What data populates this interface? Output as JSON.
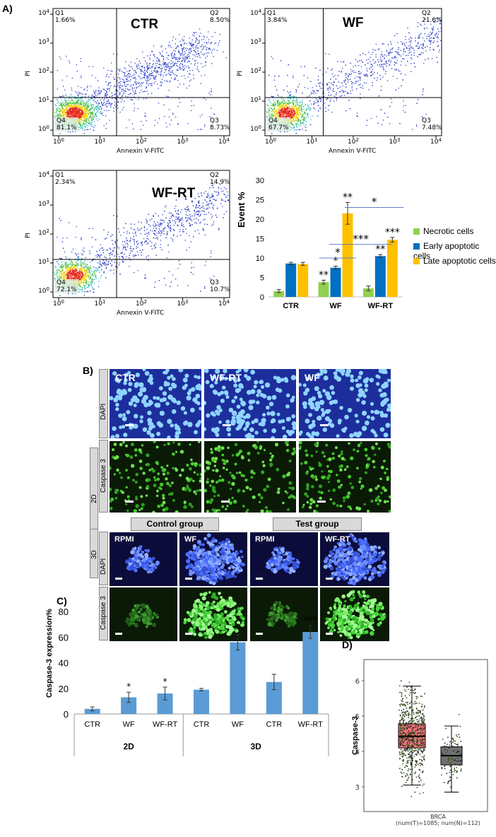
{
  "panels": {
    "a_label": "A)",
    "b_label": "B)",
    "c_label": "C)",
    "d_label": "D)"
  },
  "flow": {
    "y_axis_label": "PI",
    "x_axis_label": "Annexin V-FITC",
    "plots": [
      {
        "title": "CTR",
        "q1_label": "Q1",
        "q1_value": "1.66%",
        "q2_label": "Q2",
        "q2_value": "8.50%",
        "q3_label": "Q3",
        "q3_value": "8.73%",
        "q4_label": "Q4",
        "q4_value": "81.1%"
      },
      {
        "title": "WF",
        "q1_label": "Q1",
        "q1_value": "3.84%",
        "q2_label": "Q2",
        "q2_value": "21.0%",
        "q3_label": "Q3",
        "q3_value": "7.48%",
        "q4_label": "Q4",
        "q4_value": "67.7%"
      },
      {
        "title": "WF-RT",
        "q1_label": "Q1",
        "q1_value": "2.34%",
        "q2_label": "Q2",
        "q2_value": "14.9%",
        "q3_label": "Q3",
        "q3_value": "10.7%",
        "q4_label": "Q4",
        "q4_value": "72.1%"
      }
    ]
  },
  "chart_data": [
    {
      "type": "bar",
      "ylabel": "Event %",
      "ylim": [
        0,
        30
      ],
      "yticks": [
        "0",
        "5",
        "10",
        "15",
        "20",
        "25",
        "30"
      ],
      "categories": [
        "CTR",
        "WF",
        "WF-RT"
      ],
      "series": [
        {
          "name": "Necrotic cells",
          "color": "#92d050",
          "values": [
            1.5,
            3.8,
            2.2
          ],
          "errors": [
            0.4,
            0.5,
            0.6
          ],
          "sig": [
            "",
            "**",
            ""
          ]
        },
        {
          "name": "Early apoptotic cells",
          "color": "#0070c0",
          "values": [
            8.6,
            7.5,
            10.5
          ],
          "errors": [
            0.3,
            0.4,
            0.4
          ],
          "sig": [
            "",
            "*",
            "**"
          ]
        },
        {
          "name": "Late apoptotic cells",
          "color": "#ffc000",
          "values": [
            8.5,
            21.5,
            14.7
          ],
          "errors": [
            0.4,
            2.8,
            0.6
          ],
          "sig": [
            "",
            "**",
            "***"
          ]
        }
      ],
      "brackets": [
        "*",
        "***",
        "*"
      ],
      "legend_position": "right"
    },
    {
      "type": "bar",
      "ylabel": "Caspase-3 expression%",
      "ylim": [
        0,
        80
      ],
      "yticks": [
        "0",
        "20",
        "40",
        "60",
        "80"
      ],
      "categories": [
        "CTR",
        "WF",
        "WF-RT",
        "CTR",
        "WF",
        "CTR",
        "WF-RT"
      ],
      "groups": [
        "2D",
        "3D"
      ],
      "values": [
        4,
        13,
        16,
        19,
        56,
        25,
        64
      ],
      "errors": [
        1.5,
        4,
        5,
        1,
        6,
        6,
        5
      ],
      "sig": [
        "",
        "*",
        "*",
        "",
        "**",
        "",
        "***"
      ],
      "color": "#5b9bd5"
    },
    {
      "type": "box",
      "ylabel": "Caspase-3",
      "yticks": [
        "3",
        "4",
        "5",
        "6"
      ],
      "xlabel_line1": "BRCA",
      "xlabel_line2": "(num(T)=1085; num(N)=112)",
      "boxes": [
        {
          "group": "T",
          "color": "#f0707a",
          "q1": 4.1,
          "median": 4.43,
          "q3": 4.78,
          "whisker_low": 3.05,
          "whisker_high": 5.85
        },
        {
          "group": "N",
          "color": "#707070",
          "q1": 3.62,
          "median": 3.88,
          "q3": 4.13,
          "whisker_low": 2.85,
          "whisker_high": 4.72
        }
      ]
    }
  ],
  "microscopy": {
    "row1_labels": [
      "CTR",
      "WF-RT",
      "WF"
    ],
    "stain_dapi": "DAPI",
    "stain_casp": "Caspase 3",
    "dim_2d": "2D",
    "dim_3d": "3D",
    "control_group": "Control group",
    "test_group": "Test group",
    "row3_labels": [
      "RPMI",
      "WF",
      "RPMI",
      "WF-RT"
    ]
  }
}
